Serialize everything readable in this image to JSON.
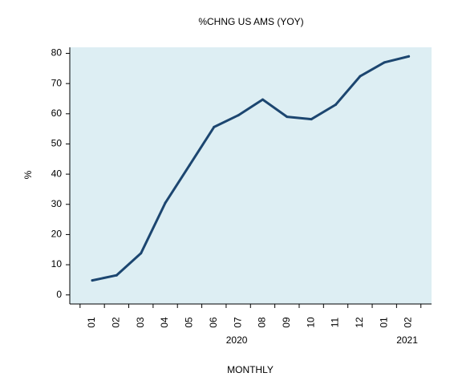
{
  "chart_data": {
    "type": "line",
    "title": "%CHNG US AMS (YOY)",
    "ylabel": "%",
    "xlabel": "MONTHLY",
    "ylim": [
      -3,
      82
    ],
    "yticks": [
      0,
      10,
      20,
      30,
      40,
      50,
      60,
      70,
      80
    ],
    "grid": false,
    "categories": [
      "01",
      "02",
      "03",
      "04",
      "05",
      "06",
      "07",
      "08",
      "09",
      "10",
      "11",
      "12",
      "01",
      "02"
    ],
    "year_labels": [
      {
        "label": "2020",
        "center_index": 6
      },
      {
        "label": "2021",
        "center_index": 13
      }
    ],
    "series": [
      {
        "values": [
          4.8,
          6.5,
          13.8,
          30.5,
          43.0,
          55.6,
          59.5,
          64.7,
          59.0,
          58.2,
          63.0,
          72.4,
          77.0,
          79.0
        ]
      }
    ],
    "colors": {
      "plot_background": "#ddeef3",
      "line": "#1c4670",
      "axis": "#000000"
    }
  }
}
